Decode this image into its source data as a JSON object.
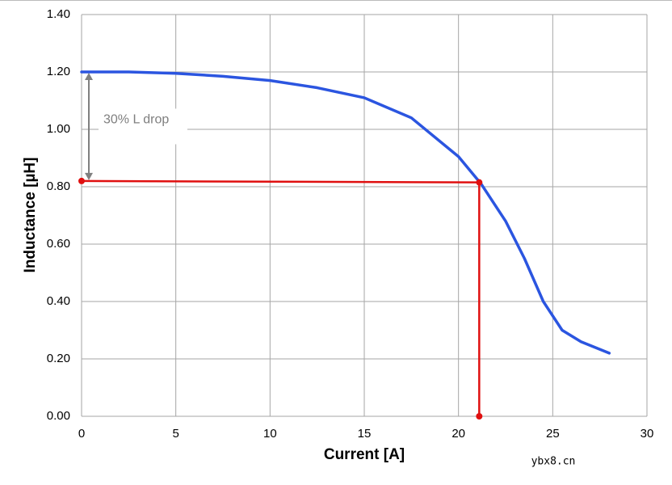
{
  "chart_data": {
    "type": "line",
    "x_label": "Current [A]",
    "y_label": "Inductance [µH]",
    "annotation": "30% L drop",
    "watermark": "ybx8.cn",
    "xlim": [
      0,
      30
    ],
    "xticks": [
      0,
      5,
      10,
      15,
      20,
      25,
      30
    ],
    "ylim": [
      0,
      1.4
    ],
    "yticks": [
      {
        "value": 0,
        "label": "0.00"
      },
      {
        "value": 0.2,
        "label": "0.20"
      },
      {
        "value": 0.4,
        "label": "0.40"
      },
      {
        "value": 0.6,
        "label": "0.60"
      },
      {
        "value": 0.8,
        "label": "0.80"
      },
      {
        "value": 1.0,
        "label": "1.00"
      },
      {
        "value": 1.2,
        "label": "1.20"
      },
      {
        "value": 1.4,
        "label": "1.40"
      }
    ],
    "grid": true,
    "series": [
      {
        "color": "#2b55e0",
        "markers": false,
        "x": [
          0,
          2.5,
          5,
          7.5,
          10,
          12.5,
          15,
          17.5,
          20,
          21.2,
          22.5,
          23.5,
          24.5,
          25.5,
          26.5,
          28
        ],
        "values": [
          1.2,
          1.2,
          1.195,
          1.185,
          1.17,
          1.145,
          1.11,
          1.04,
          0.905,
          0.81,
          0.68,
          0.55,
          0.4,
          0.3,
          0.26,
          0.22
        ]
      },
      {
        "color": "#e01010",
        "markers": true,
        "x": [
          0,
          21.1,
          21.1
        ],
        "values": [
          0.82,
          0.815,
          0
        ]
      }
    ]
  }
}
